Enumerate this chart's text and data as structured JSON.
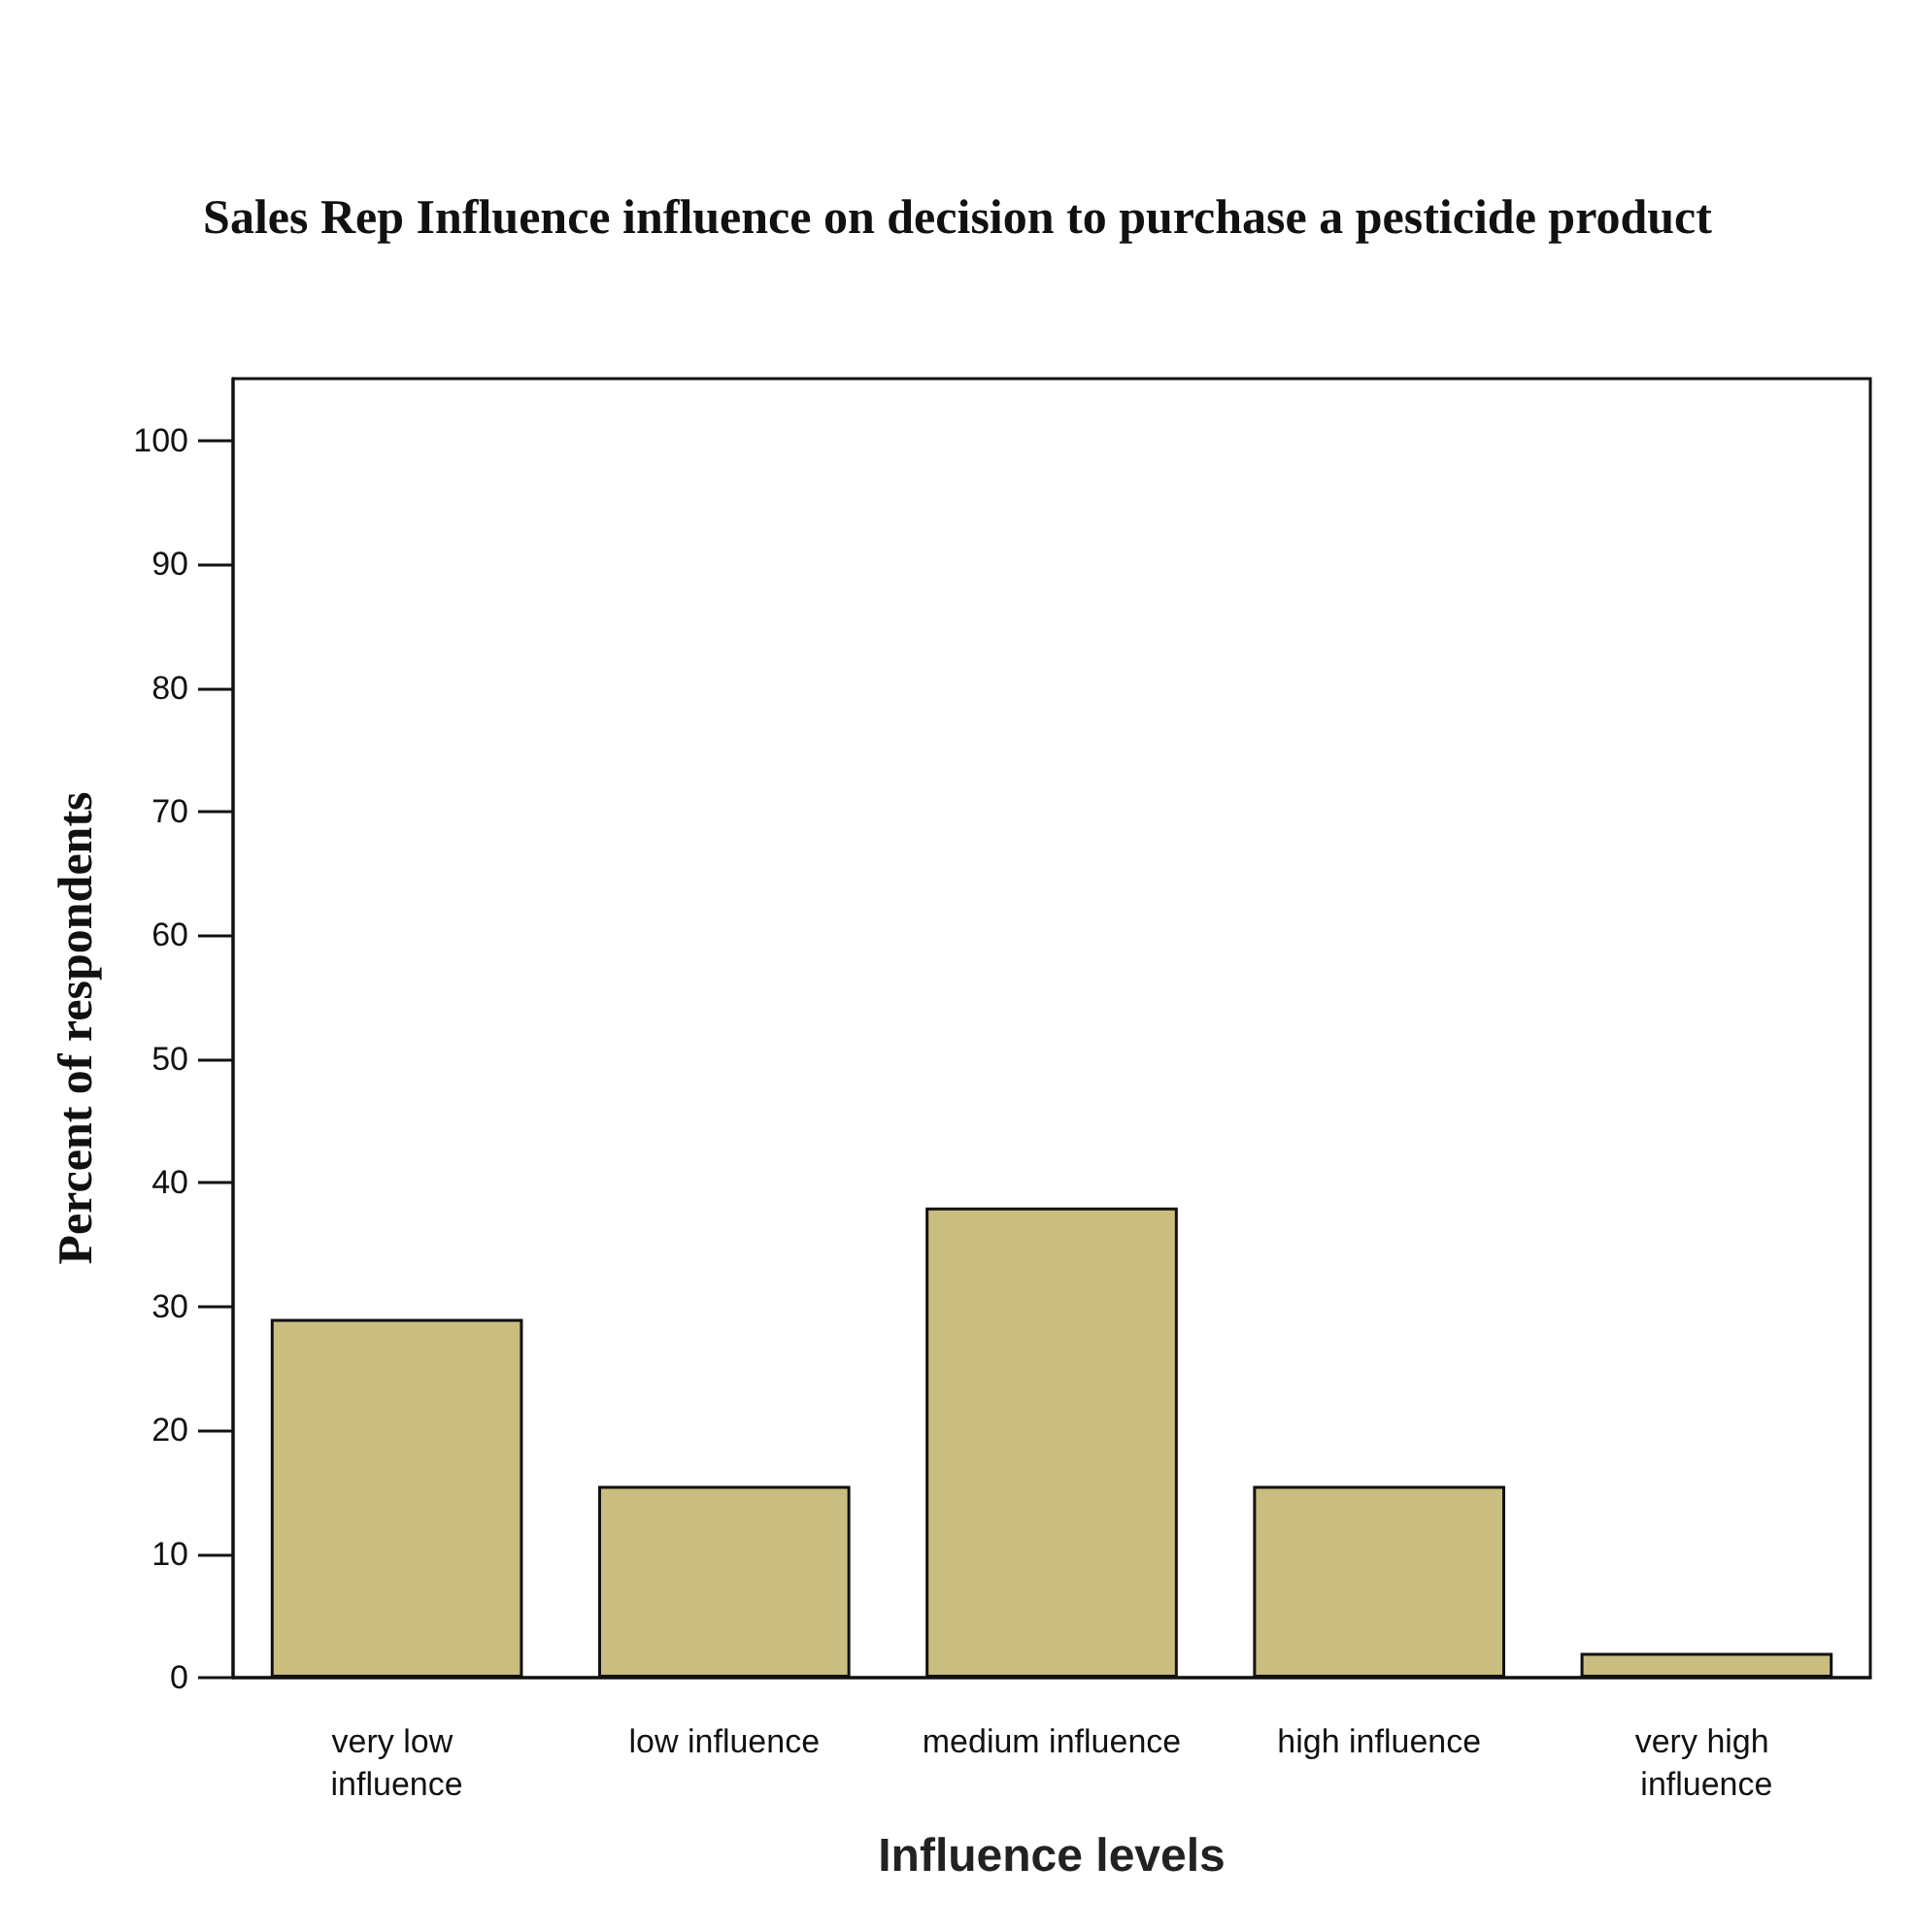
{
  "chart_data": {
    "type": "bar",
    "title": "Sales Rep Influence influence on decision to purchase a pesticide product",
    "xlabel": "Influence levels",
    "ylabel": "Percent of respondents",
    "categories": [
      "very low influence",
      "low influence",
      "medium influence",
      "high influence",
      "very high influence"
    ],
    "values": [
      29,
      15.5,
      38,
      15.5,
      2
    ],
    "color": "#c9bd80",
    "ylim": [
      0,
      105
    ],
    "yticks": [
      0,
      10,
      20,
      30,
      40,
      50,
      60,
      70,
      80,
      90,
      100
    ],
    "grid": false
  }
}
